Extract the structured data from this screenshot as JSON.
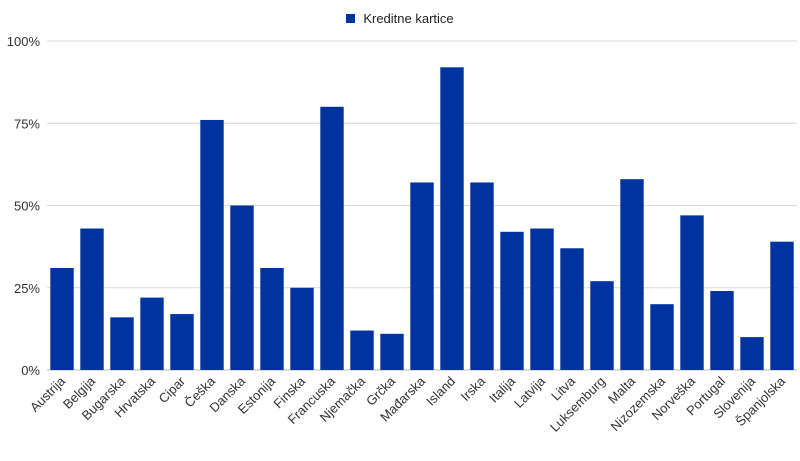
{
  "chart_data": {
    "type": "bar",
    "categories": [
      "Austrija",
      "Belgija",
      "Bugarska",
      "Hrvatska",
      "Cipar",
      "Češka",
      "Danska",
      "Estonija",
      "Finska",
      "Francuska",
      "Njemačka",
      "Grčka",
      "Mađarska",
      "Island",
      "Irska",
      "Italija",
      "Latvija",
      "Litva",
      "Luksemburg",
      "Malta",
      "Nizozemska",
      "Norveška",
      "Portugal",
      "Slovenija",
      "Španjolska"
    ],
    "series": [
      {
        "name": "Kreditne kartice",
        "color": "#0033a0",
        "values": [
          31,
          43,
          16,
          22,
          17,
          76,
          50,
          31,
          25,
          80,
          12,
          11,
          57,
          92,
          57,
          42,
          43,
          37,
          27,
          58,
          20,
          47,
          24,
          10,
          39
        ]
      }
    ],
    "ylim": [
      0,
      100
    ],
    "yticks": [
      0,
      25,
      50,
      75,
      100
    ],
    "ytick_labels": [
      "0%",
      "25%",
      "50%",
      "75%",
      "100%"
    ],
    "grid": true,
    "legend_position": "top-center",
    "xlabel_rotation": "-45deg",
    "title": "",
    "xlabel": "",
    "ylabel": ""
  }
}
